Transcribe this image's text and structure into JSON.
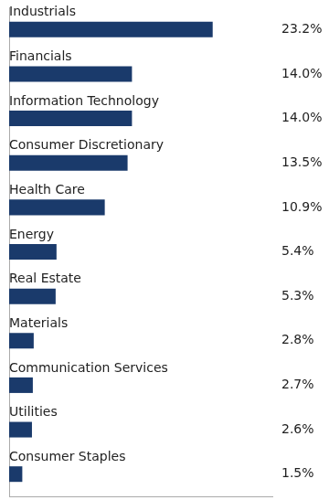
{
  "chart_data": {
    "type": "bar",
    "orientation": "horizontal",
    "categories": [
      "Industrials",
      "Financials",
      "Information Technology",
      "Consumer Discretionary",
      "Health Care",
      "Energy",
      "Real Estate",
      "Materials",
      "Communication Services",
      "Utilities",
      "Consumer Staples"
    ],
    "values": [
      23.2,
      14.0,
      14.0,
      13.5,
      10.9,
      5.4,
      5.3,
      2.8,
      2.7,
      2.6,
      1.5
    ],
    "value_labels": [
      "23.2%",
      "14.0%",
      "14.0%",
      "13.5%",
      "10.9%",
      "5.4%",
      "5.3%",
      "2.8%",
      "2.7%",
      "2.6%",
      "1.5%"
    ],
    "data_labels": true,
    "color": "#1a3a6b",
    "xlim": [
      0,
      30
    ],
    "tick_labels": false,
    "grid": false
  }
}
